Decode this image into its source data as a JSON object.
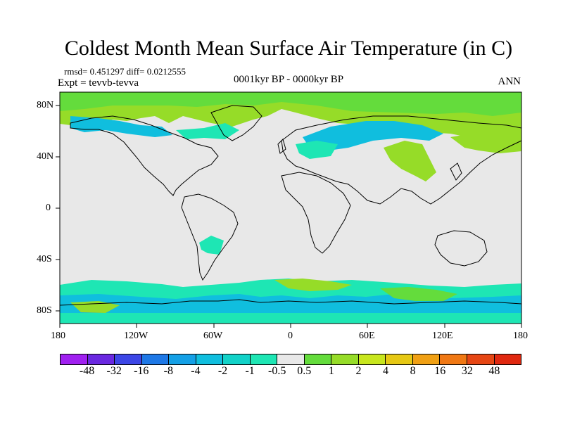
{
  "title": "Coldest Month Mean Surface Air Temperature (in C)",
  "stats": "rmsd= 0.451297 diff= 0.0212555",
  "experiment": "Expt = tevvb-tevva",
  "period": "0001kyr BP - 0000kyr BP",
  "season": "ANN",
  "lat_ticks": [
    "80N",
    "40N",
    "0",
    "40S",
    "80S"
  ],
  "lon_ticks": [
    "180",
    "120W",
    "60W",
    "0",
    "60E",
    "120E",
    "180"
  ],
  "colorbar": {
    "labels": [
      "-48",
      "-32",
      "-16",
      "-8",
      "-4",
      "-2",
      "-1",
      "-0.5",
      "0.5",
      "1",
      "2",
      "4",
      "8",
      "16",
      "32",
      "48"
    ],
    "colors": [
      "#a020f0",
      "#6a28e0",
      "#3c46e6",
      "#1e78e6",
      "#14a0e6",
      "#10bede",
      "#12d2c8",
      "#1ee6b4",
      "#e8e8e8",
      "#64dc3c",
      "#96dc28",
      "#c8e61e",
      "#e6c814",
      "#f0a014",
      "#f07814",
      "#e64614",
      "#e02810"
    ]
  },
  "colors": {
    "neutral": "#e8e8e8",
    "cool_cyan": "#10bede",
    "cool_teal": "#1ee6b4",
    "warm_green": "#64dc3c",
    "warm_lime": "#96dc28"
  }
}
